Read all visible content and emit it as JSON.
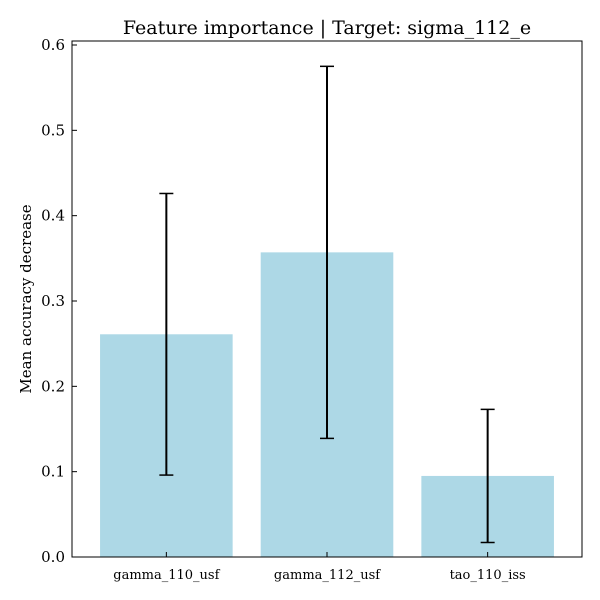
{
  "chart_data": {
    "type": "bar",
    "title": "Feature importance | Target: sigma_112_e",
    "xlabel": "",
    "ylabel": "Mean accuracy decrease",
    "categories": [
      "gamma_110_usf",
      "gamma_112_usf",
      "tao_110_iss"
    ],
    "values": [
      0.261,
      0.357,
      0.095
    ],
    "errors": [
      0.165,
      0.218,
      0.078
    ],
    "ylim": [
      0,
      0.6
    ],
    "yticks": [
      "0.0",
      "0.1",
      "0.2",
      "0.3",
      "0.4",
      "0.5",
      "0.6"
    ],
    "grid": false,
    "bar_color": "#add8e6",
    "error_color": "#000000"
  }
}
